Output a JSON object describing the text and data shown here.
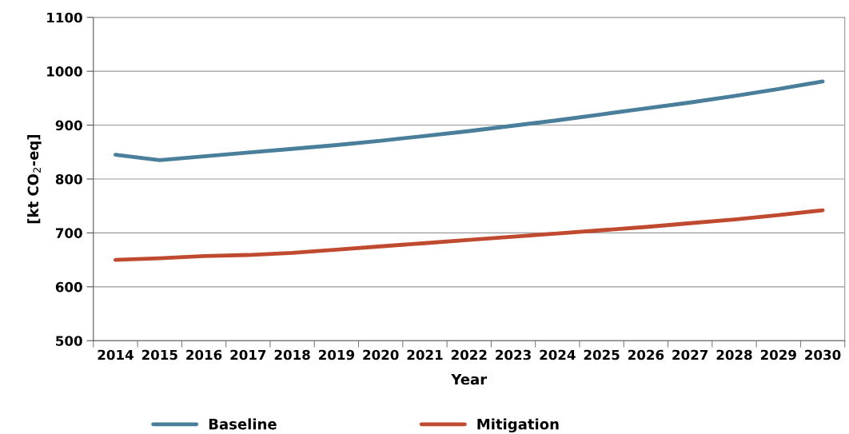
{
  "chart_data": {
    "type": "line",
    "xlabel": "Year",
    "ylabel": "[kt CO$_{2}$-eq]",
    "categories": [
      "2014",
      "2015",
      "2016",
      "2017",
      "2018",
      "2019",
      "2020",
      "2021",
      "2022",
      "2023",
      "2024",
      "2025",
      "2026",
      "2027",
      "2028",
      "2029",
      "2030"
    ],
    "series": [
      {
        "name": "Baseline",
        "color": "#4a7f9c",
        "values": [
          845,
          835,
          842,
          849,
          856,
          863,
          871,
          880,
          889,
          899,
          909,
          920,
          931,
          942,
          954,
          967,
          981
        ]
      },
      {
        "name": "Mitigation",
        "color": "#bf4a2f",
        "values": [
          650,
          653,
          657,
          659,
          663,
          669,
          675,
          681,
          687,
          693,
          699,
          705,
          711,
          718,
          725,
          733,
          742
        ]
      }
    ],
    "ylim": [
      500,
      1100
    ],
    "yticks": [
      500,
      600,
      700,
      800,
      900,
      1000,
      1100
    ],
    "grid": "y",
    "legend": "bottom",
    "marker": "none",
    "line_style": "solid"
  }
}
